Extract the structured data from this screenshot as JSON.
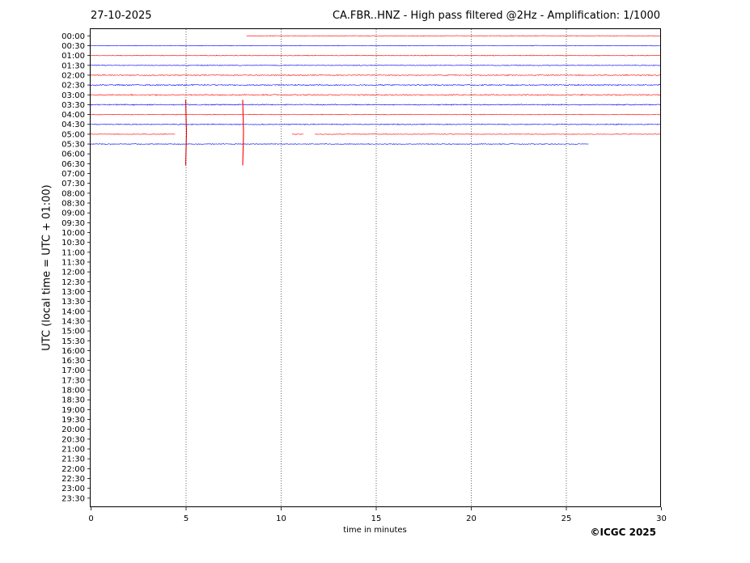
{
  "chart_data": {
    "type": "line",
    "title": "CA.FBR..HNZ - High pass filtered @2Hz - Amplification: 1/1000",
    "date": "27-10-2025",
    "xlabel": "time in minutes",
    "ylabel": "UTC (local time = UTC + 01:00)",
    "xlim": [
      0,
      30
    ],
    "xticks": [
      0,
      5,
      10,
      15,
      20,
      25,
      30
    ],
    "yticks": [
      "00:00",
      "00:30",
      "01:00",
      "01:30",
      "02:00",
      "02:30",
      "03:00",
      "03:30",
      "04:00",
      "04:30",
      "05:00",
      "05:30",
      "06:00",
      "06:30",
      "07:00",
      "07:30",
      "08:00",
      "08:30",
      "09:00",
      "09:30",
      "10:00",
      "10:30",
      "11:00",
      "11:30",
      "12:00",
      "12:30",
      "13:00",
      "13:30",
      "14:00",
      "14:30",
      "15:00",
      "15:30",
      "16:00",
      "16:30",
      "17:00",
      "17:30",
      "18:00",
      "18:30",
      "19:00",
      "19:30",
      "20:00",
      "20:30",
      "21:00",
      "21:30",
      "22:00",
      "22:30",
      "23:00",
      "23:30"
    ],
    "grid": "vertical dotted at x ticks",
    "trace_colors": [
      "#ff0000",
      "#0000ff"
    ],
    "series": [
      {
        "row": "00:00",
        "color": "#ff0000",
        "x_range": [
          8.2,
          30
        ],
        "noise_amp": 0.12
      },
      {
        "row": "00:30",
        "color": "#0000ff",
        "x_range": [
          0,
          30
        ],
        "noise_amp": 0.12
      },
      {
        "row": "01:00",
        "color": "#ff0000",
        "x_range": [
          0,
          30
        ],
        "noise_amp": 0.15
      },
      {
        "row": "01:30",
        "color": "#0000ff",
        "x_range": [
          0,
          30
        ],
        "noise_amp": 0.15
      },
      {
        "row": "02:00",
        "color": "#ff0000",
        "x_range": [
          0,
          30
        ],
        "noise_amp": 0.18
      },
      {
        "row": "02:30",
        "color": "#0000ff",
        "x_range": [
          0,
          30
        ],
        "noise_amp": 0.22
      },
      {
        "row": "03:00",
        "color": "#ff0000",
        "x_range": [
          0,
          30
        ],
        "noise_amp": 0.2
      },
      {
        "row": "03:30",
        "color": "#0000ff",
        "x_range": [
          0,
          30
        ],
        "noise_amp": 0.2
      },
      {
        "row": "04:00",
        "color": "#ff0000",
        "x_range": [
          0,
          30
        ],
        "noise_amp": 0.15
      },
      {
        "row": "04:30",
        "color": "#0000ff",
        "x_range": [
          0,
          30
        ],
        "noise_amp": 0.18
      },
      {
        "row": "05:00",
        "color": "#ff0000",
        "segments": [
          [
            0,
            4.45
          ],
          [
            10.6,
            11.2
          ],
          [
            11.8,
            30
          ]
        ],
        "noise_amp": 0.12
      },
      {
        "row": "05:30",
        "color": "#0000ff",
        "x_range": [
          0,
          26.2
        ],
        "noise_amp": 0.15
      }
    ],
    "events": [
      {
        "x": 5.0,
        "color": "#ff0000",
        "top_row": "03:30",
        "bottom_row": "06:30"
      },
      {
        "x": 8.0,
        "color": "#ff0000",
        "top_row": "03:30",
        "bottom_row": "06:30"
      }
    ]
  },
  "copyright": "©ICGC 2025"
}
